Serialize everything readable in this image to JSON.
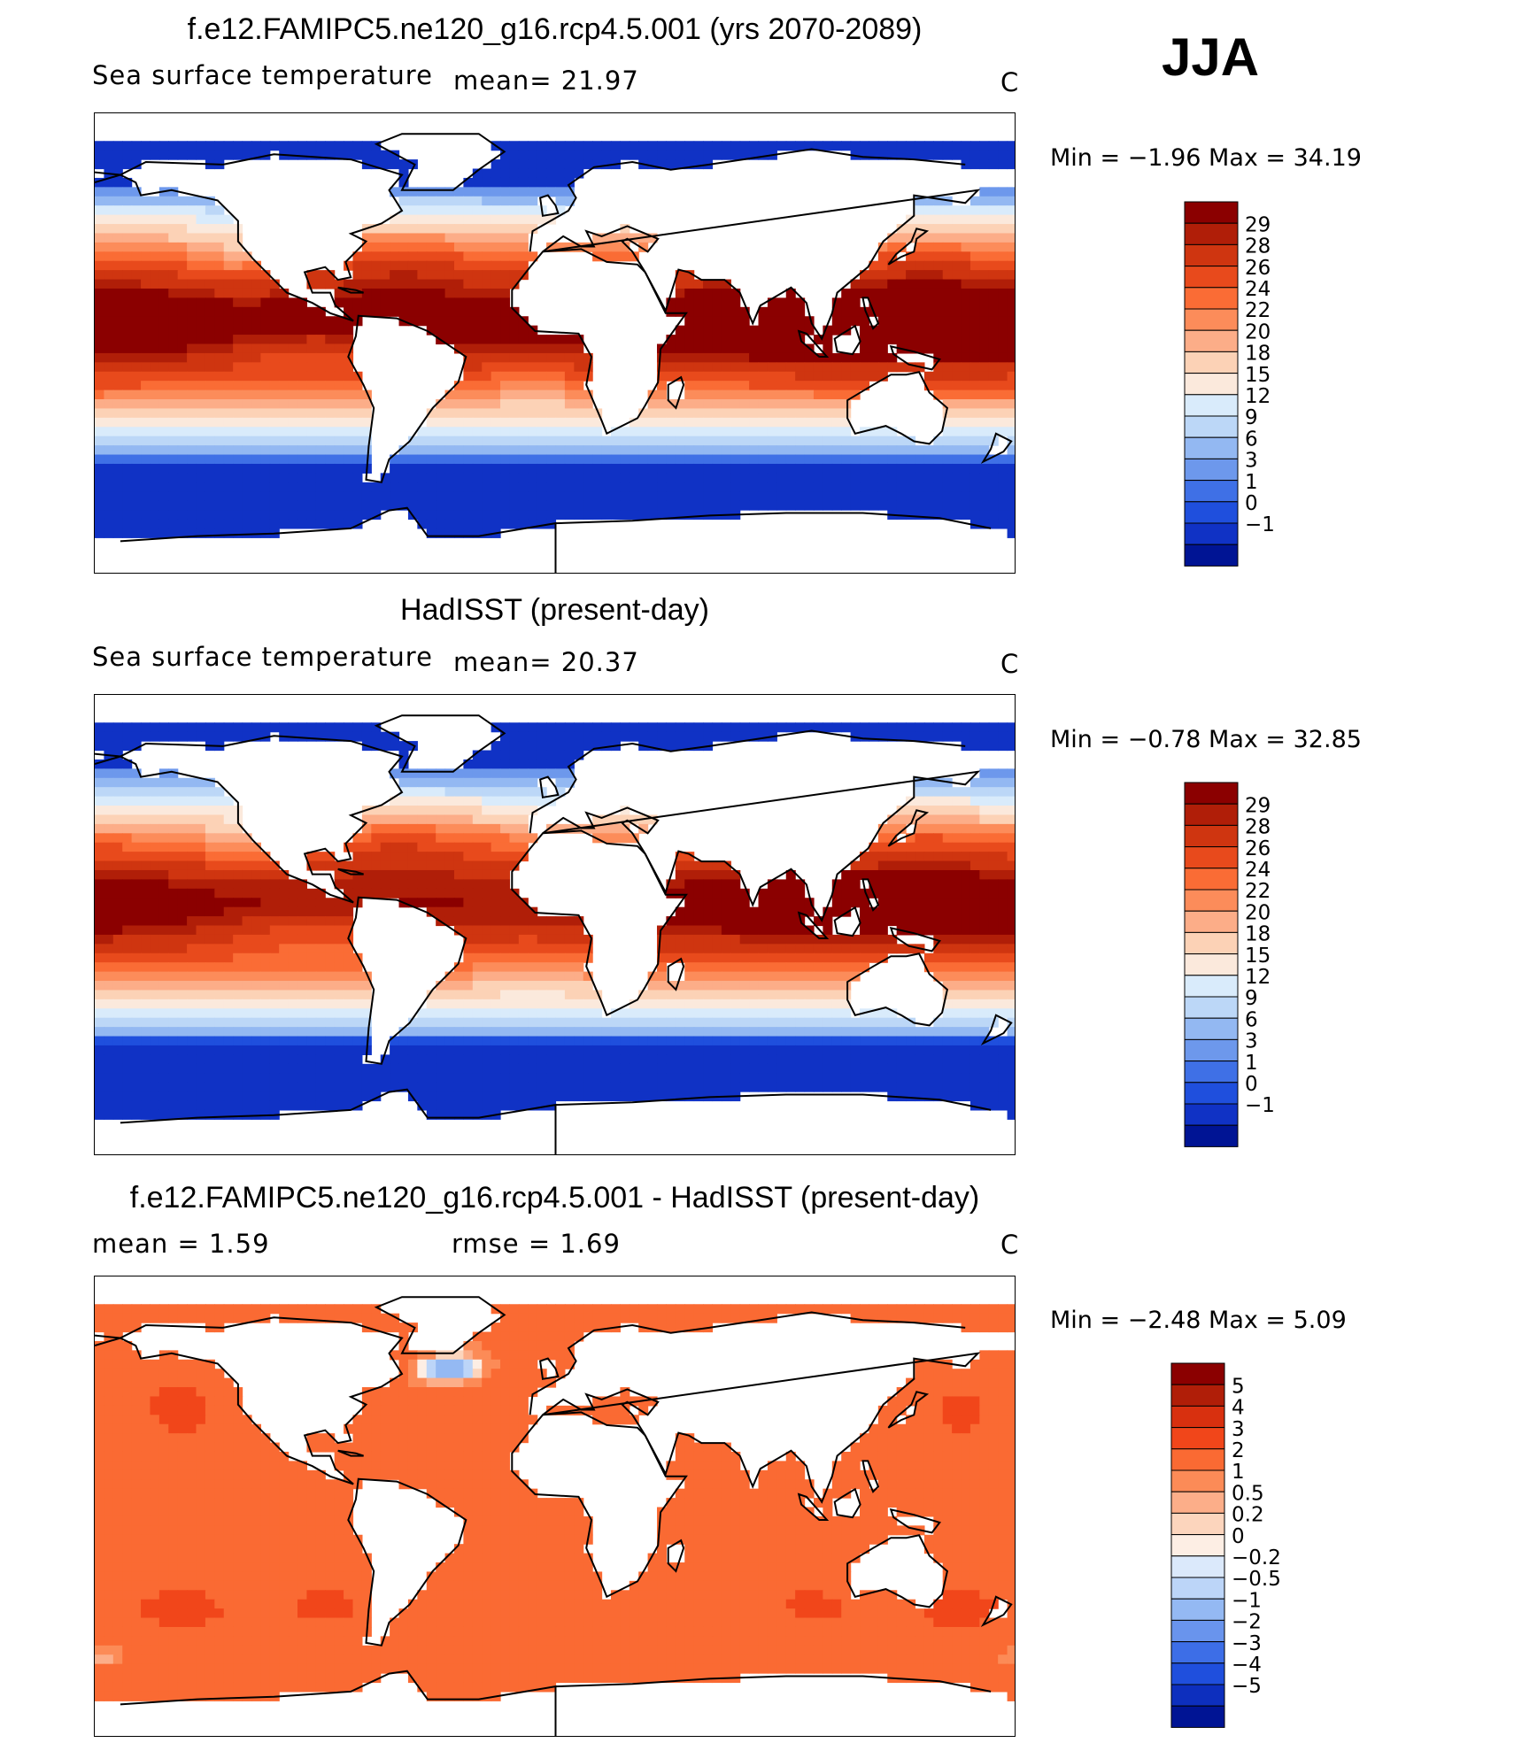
{
  "season": "JJA",
  "chart_data": [
    {
      "type": "heatmap",
      "title": "f.e12.FAMIPC5.ne120_g16.rcp4.5.001 (yrs 2070-2089)",
      "left_label": "Sea surface temperature",
      "center_label": "mean=   21.97",
      "units": "C",
      "minmax": "Min =   −1.96 Max =   34.19",
      "min": -1.96,
      "max": 34.19,
      "mean": 21.97,
      "scale": "abs",
      "boost": 0.9,
      "levels": [
        "29",
        "28",
        "26",
        "24",
        "22",
        "20",
        "18",
        "15",
        "12",
        "9",
        "6",
        "3",
        "1",
        "0",
        "−1"
      ],
      "colors": [
        "#8b0000",
        "#b01e08",
        "#cf3510",
        "#e84a1c",
        "#fa6c35",
        "#fc8c5a",
        "#fcad88",
        "#fcd2b6",
        "#fbe9dc",
        "#d9ebfb",
        "#bcd7f7",
        "#93b8f2",
        "#6d98ec",
        "#3f70e6",
        "#1f4fdd",
        "#1032c5",
        "#001494"
      ]
    },
    {
      "type": "heatmap",
      "title": "HadISST (present-day)",
      "left_label": "Sea surface temperature",
      "center_label": "mean=   20.37",
      "units": "C",
      "minmax": "Min =   −0.78 Max =   32.85",
      "min": -0.78,
      "max": 32.85,
      "mean": 20.37,
      "scale": "abs",
      "boost": 0,
      "levels": [
        "29",
        "28",
        "26",
        "24",
        "22",
        "20",
        "18",
        "15",
        "12",
        "9",
        "6",
        "3",
        "1",
        "0",
        "−1"
      ],
      "colors": [
        "#8b0000",
        "#b01e08",
        "#cf3510",
        "#e84a1c",
        "#fa6c35",
        "#fc8c5a",
        "#fcad88",
        "#fcd2b6",
        "#fbe9dc",
        "#d9ebfb",
        "#bcd7f7",
        "#93b8f2",
        "#6d98ec",
        "#3f70e6",
        "#1f4fdd",
        "#1032c5",
        "#001494"
      ]
    },
    {
      "type": "heatmap",
      "title": "f.e12.FAMIPC5.ne120_g16.rcp4.5.001 - HadISST (present-day)",
      "left_label": "mean =     1.59",
      "center_label": "rmse =     1.69",
      "units": "C",
      "minmax": "Min =   −2.48 Max =     5.09",
      "min": -2.48,
      "max": 5.09,
      "mean": 1.59,
      "rmse": 1.69,
      "scale": "diff",
      "boost": 0,
      "levels": [
        "5",
        "4",
        "3",
        "2",
        "1",
        "0.5",
        "0.2",
        "0",
        "−0.2",
        "−0.5",
        "−1",
        "−2",
        "−3",
        "−4",
        "−5"
      ],
      "colors": [
        "#8b0000",
        "#b01e08",
        "#d8300f",
        "#f1461a",
        "#fa6a33",
        "#fc8b57",
        "#fcae89",
        "#fcd5bd",
        "#fdeee4",
        "#dbe9fb",
        "#bcd5f8",
        "#94b9f3",
        "#6994ed",
        "#3d6ee7",
        "#1f4fdd",
        "#0d2fbe",
        "#001494"
      ]
    }
  ]
}
